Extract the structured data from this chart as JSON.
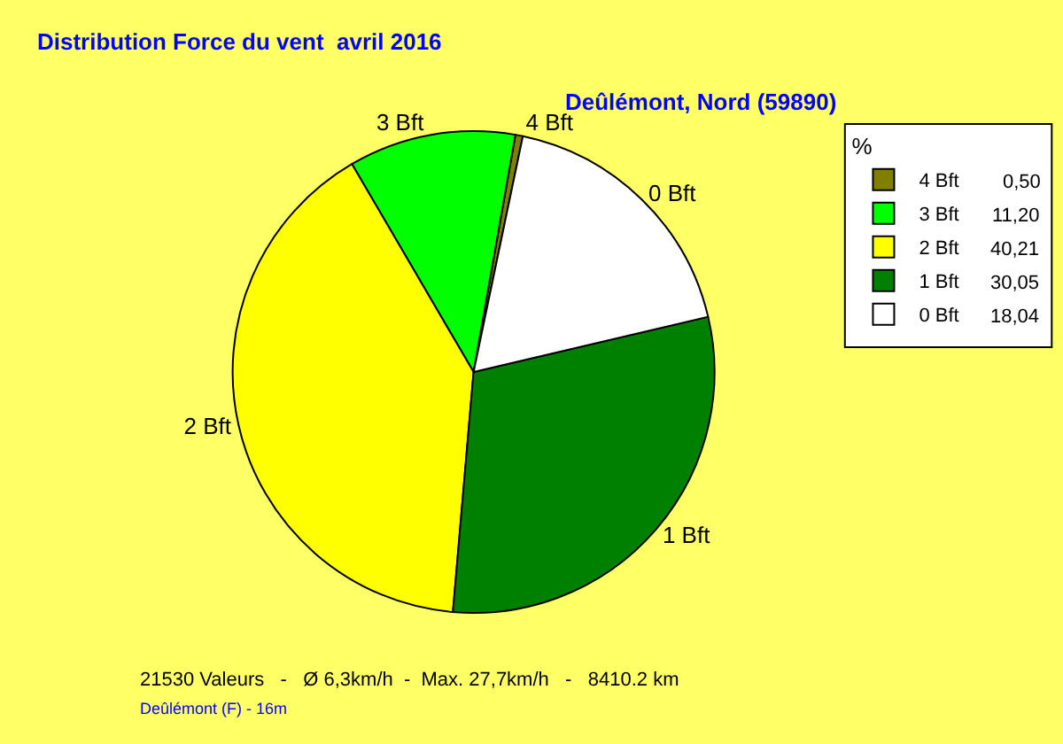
{
  "chart_data": {
    "type": "pie",
    "title": "Distribution Force du vent  avril 2016",
    "subtitle": "Deûlémont, Nord (59890)",
    "legend_title": "%",
    "categories": [
      "4 Bft",
      "3 Bft",
      "2 Bft",
      "1 Bft",
      "0 Bft"
    ],
    "values": [
      0.5,
      11.2,
      40.21,
      30.05,
      18.04
    ],
    "value_labels": [
      "0,50",
      "11,20",
      "40,21",
      "30,05",
      "18,04"
    ],
    "colors": [
      "#808000",
      "#00ff00",
      "#ffff00",
      "#008000",
      "#ffffff"
    ],
    "legend": "top right",
    "annotations": [
      "21530 Valeurs   -   Ø 6,3km/h  -  Max. 27,7km/h   -   8410.2 km",
      "Deûlémont (F) - 16m"
    ]
  }
}
